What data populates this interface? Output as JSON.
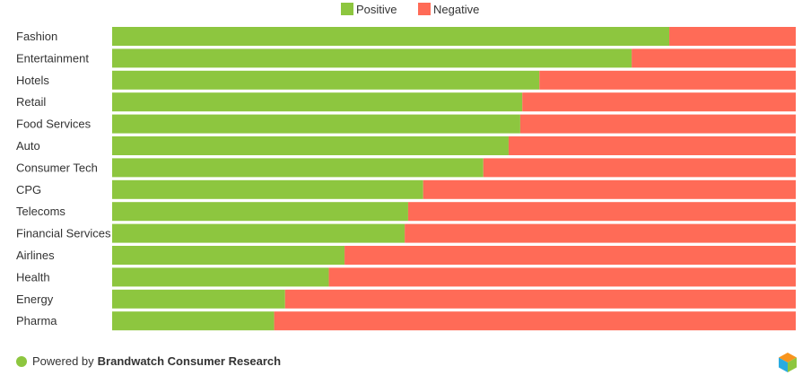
{
  "chart_data": {
    "type": "bar",
    "orientation": "horizontal",
    "stacked": "100%",
    "categories": [
      "Fashion",
      "Entertainment",
      "Hotels",
      "Retail",
      "Food Services",
      "Auto",
      "Consumer Tech",
      "CPG",
      "Telecoms",
      "Financial Services",
      "Airlines",
      "Health",
      "Energy",
      "Pharma"
    ],
    "series": [
      {
        "name": "Positive",
        "color": "#8dc63f",
        "values": [
          81.5,
          76,
          62.5,
          60,
          59.7,
          58,
          54.3,
          45.5,
          43.3,
          42.8,
          34,
          31.7,
          25.3,
          23.7
        ]
      },
      {
        "name": "Negative",
        "color": "#ff6b57",
        "values": [
          18.5,
          24,
          37.5,
          40,
          40.3,
          42,
          45.7,
          54.5,
          56.7,
          57.2,
          66,
          68.3,
          74.7,
          76.3
        ]
      }
    ],
    "xlim": [
      0,
      100
    ],
    "legend_position": "top-center",
    "grid": false
  },
  "footer": {
    "prefix": "Powered by",
    "brand": "Brandwatch Consumer Research",
    "dot_color": "#8dc63f"
  },
  "logo": {
    "icon": "brandwatch-cube-icon",
    "colors": [
      "#f7941d",
      "#29abe2",
      "#8dc63f"
    ]
  }
}
